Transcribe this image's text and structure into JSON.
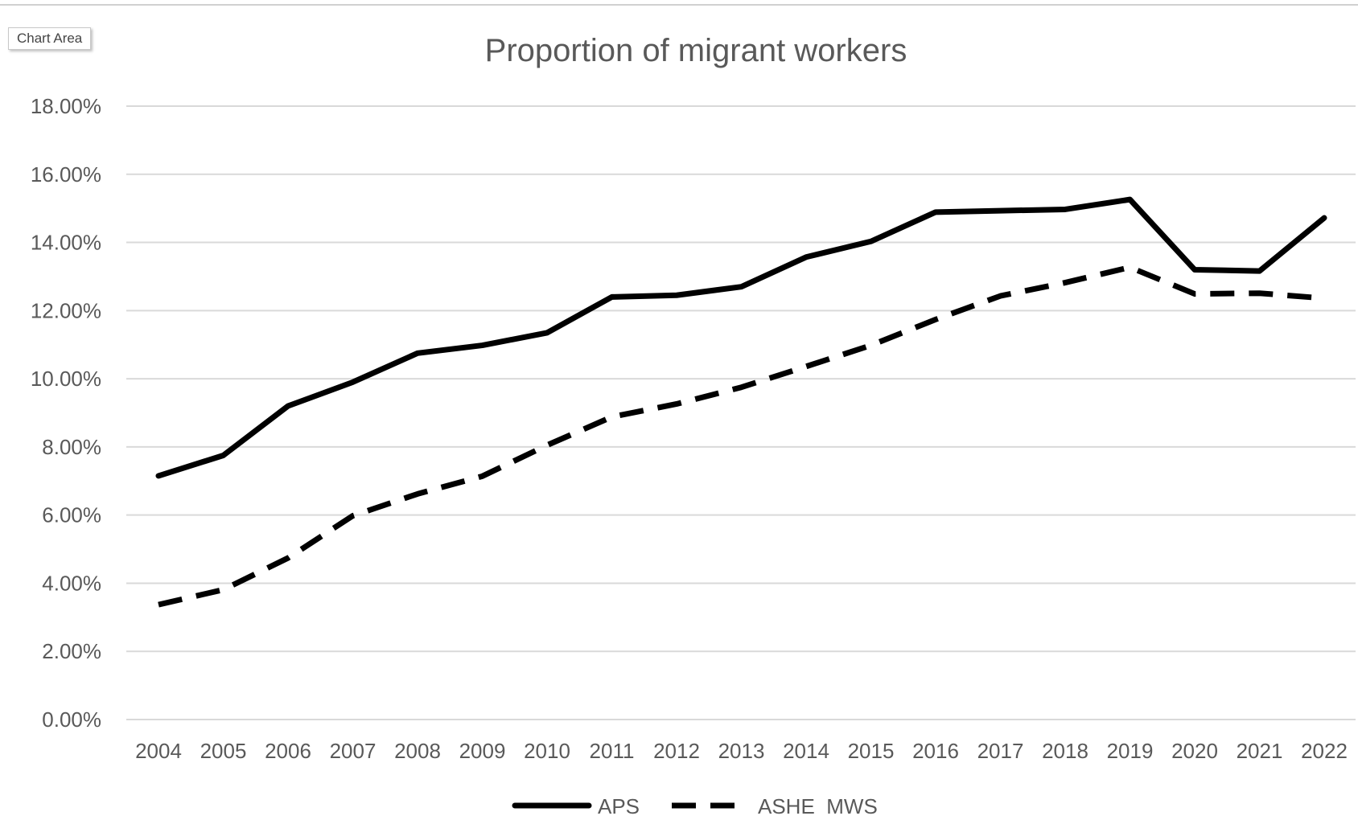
{
  "tooltip": {
    "label": "Chart Area"
  },
  "chart_data": {
    "type": "line",
    "title": "Proportion of migrant workers",
    "xlabel": "",
    "ylabel": "",
    "categories": [
      "2004",
      "2005",
      "2006",
      "2007",
      "2008",
      "2009",
      "2010",
      "2011",
      "2012",
      "2013",
      "2014",
      "2015",
      "2016",
      "2017",
      "2018",
      "2019",
      "2020",
      "2021",
      "2022"
    ],
    "series": [
      {
        "name": "APS",
        "line_style": "solid",
        "color": "#000000",
        "values": [
          7.15,
          7.75,
          9.2,
          9.9,
          10.75,
          10.98,
          11.35,
          12.4,
          12.45,
          12.7,
          13.57,
          14.03,
          14.89,
          14.93,
          14.97,
          15.26,
          13.2,
          13.16,
          14.72
        ]
      },
      {
        "name": "ASHE_MWS",
        "line_style": "dashed",
        "color": "#000000",
        "values": [
          3.37,
          3.81,
          4.74,
          5.98,
          6.62,
          7.14,
          8.05,
          8.88,
          9.26,
          9.75,
          10.36,
          10.98,
          11.74,
          12.43,
          12.82,
          13.27,
          12.49,
          12.51,
          12.36
        ]
      }
    ],
    "yticks": [
      "0.00%",
      "2.00%",
      "4.00%",
      "6.00%",
      "8.00%",
      "10.00%",
      "12.00%",
      "14.00%",
      "16.00%",
      "18.00%"
    ],
    "ylim": [
      0,
      18
    ],
    "grid": true,
    "gridline_color": "#d9d9d9",
    "legend_position": "bottom"
  }
}
